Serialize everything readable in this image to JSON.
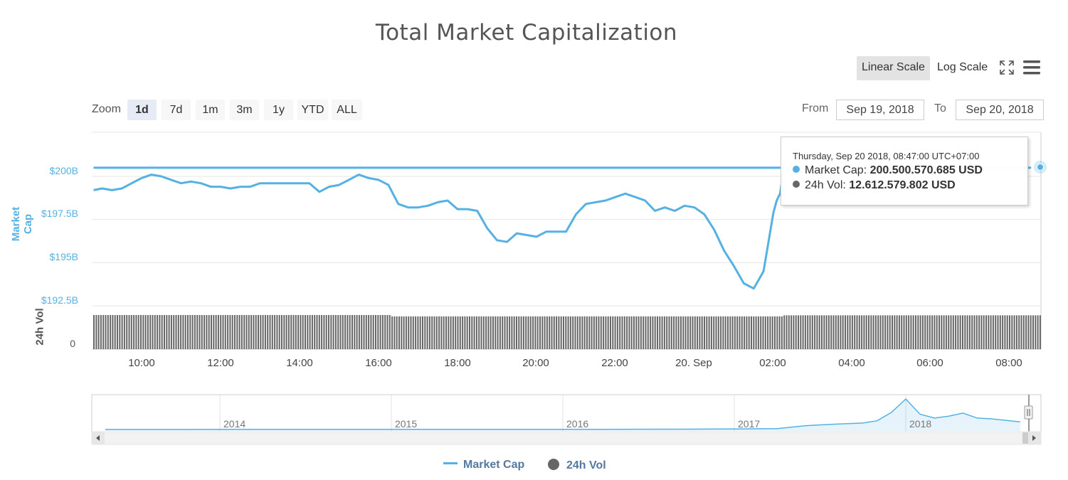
{
  "title": "Total Market Capitalization",
  "scale_toggle": {
    "linear": "Linear Scale",
    "log": "Log Scale",
    "active": "linear"
  },
  "icons": {
    "fullscreen": "fullscreen-icon",
    "menu": "menu-icon"
  },
  "zoom": {
    "label": "Zoom",
    "options": [
      "1d",
      "7d",
      "1m",
      "3m",
      "1y",
      "YTD",
      "ALL"
    ],
    "selected": "1d"
  },
  "date_range": {
    "from_label": "From",
    "from": "Sep 19, 2018",
    "to_label": "To",
    "to": "Sep 20, 2018"
  },
  "colors": {
    "market_cap": "#55b1e3",
    "volume": "#666666",
    "accent_button": "#e6ebf5"
  },
  "tooltip": {
    "date": "Thursday, Sep 20 2018, 08:47:00 UTC+07:00",
    "rows": [
      {
        "label": "Market Cap:",
        "value": "200.500.570.685 USD"
      },
      {
        "label": "24h Vol:",
        "value": "12.612.579.802 USD"
      }
    ]
  },
  "legend": {
    "market_cap": "Market Cap",
    "volume": "24h Vol"
  },
  "navigator": {
    "years": [
      "2014",
      "2015",
      "2016",
      "2017",
      "2018"
    ]
  },
  "chart_data": {
    "type": "line",
    "title": "Total Market Capitalization",
    "ylabel": "Market Cap",
    "y2label": "24h Vol",
    "yticks": [
      "$192.5B",
      "$195B",
      "$197.5B",
      "$200B"
    ],
    "y2ticks": [
      "0"
    ],
    "xticks": [
      "10:00",
      "12:00",
      "14:00",
      "16:00",
      "18:00",
      "20:00",
      "22:00",
      "20. Sep",
      "02:00",
      "04:00",
      "06:00",
      "08:00"
    ],
    "ylim": [
      192.5,
      202
    ],
    "grid": true,
    "legend_position": "bottom-center",
    "x": [
      "08:47",
      "09:00",
      "09:15",
      "09:30",
      "09:45",
      "10:00",
      "10:15",
      "10:30",
      "10:45",
      "11:00",
      "11:15",
      "11:30",
      "11:45",
      "12:00",
      "12:15",
      "12:30",
      "12:45",
      "13:00",
      "13:15",
      "13:30",
      "13:45",
      "14:00",
      "14:15",
      "14:30",
      "14:45",
      "15:00",
      "15:15",
      "15:30",
      "15:45",
      "16:00",
      "16:15",
      "16:30",
      "16:45",
      "17:00",
      "17:15",
      "17:30",
      "17:45",
      "18:00",
      "18:15",
      "18:30",
      "18:45",
      "19:00",
      "19:15",
      "19:30",
      "19:45",
      "20:00",
      "20:15",
      "20:30",
      "20:45",
      "21:00",
      "21:15",
      "21:30",
      "21:45",
      "22:00",
      "22:15",
      "22:30",
      "22:45",
      "23:00",
      "23:15",
      "23:30",
      "23:45",
      "00:00",
      "00:15",
      "00:30",
      "00:45",
      "01:00",
      "01:15",
      "01:30",
      "01:45",
      "02:00",
      "02:05",
      "02:10",
      "02:15",
      "02:20",
      "02:25",
      "02:30",
      "02:45",
      "03:00",
      "03:30",
      "04:00",
      "05:00",
      "06:00",
      "07:00",
      "08:00",
      "08:30",
      "08:47"
    ],
    "series": [
      {
        "name": "Market Cap",
        "unit": "USD billions",
        "values": [
          199.2,
          199.3,
          199.2,
          199.3,
          199.6,
          199.9,
          200.1,
          200.0,
          199.8,
          199.6,
          199.7,
          199.6,
          199.4,
          199.4,
          199.3,
          199.4,
          199.4,
          199.6,
          199.6,
          199.6,
          199.6,
          199.6,
          199.6,
          199.1,
          199.4,
          199.5,
          199.8,
          200.1,
          199.9,
          199.8,
          199.5,
          198.4,
          198.2,
          198.2,
          198.3,
          198.5,
          198.6,
          198.1,
          198.1,
          198.0,
          197.0,
          196.3,
          196.2,
          196.7,
          196.6,
          196.5,
          196.8,
          196.8,
          196.8,
          197.8,
          198.4,
          198.5,
          198.6,
          198.8,
          199.0,
          198.8,
          198.6,
          198.0,
          198.2,
          198.0,
          198.3,
          198.2,
          197.8,
          196.9,
          195.7,
          194.8,
          193.8,
          193.5,
          194.5,
          197.9,
          198.6,
          199.0,
          200.2,
          200.3,
          200.4,
          200.4,
          200.4,
          200.4,
          200.5,
          200.5,
          200.5,
          200.5,
          200.5,
          200.5,
          200.5,
          200.5
        ]
      },
      {
        "name": "24h Vol",
        "unit": "USD",
        "values_bn": {
          "08:47-18:00": 12.7,
          "18:00-02:00": 12.2,
          "02:00-08:47": 12.6
        }
      }
    ],
    "navigator_series": {
      "name": "Market Cap (all time)",
      "unit": "USD billions",
      "x": [
        "2013-04",
        "2013-10",
        "2014-04",
        "2014-10",
        "2015-04",
        "2015-10",
        "2016-04",
        "2016-10",
        "2017-01",
        "2017-04",
        "2017-06",
        "2017-08",
        "2017-10",
        "2017-11",
        "2017-12",
        "2018-01",
        "2018-02",
        "2018-03",
        "2018-04",
        "2018-05",
        "2018-06",
        "2018-07",
        "2018-08",
        "2018-09"
      ],
      "values": [
        1.5,
        2,
        5,
        6,
        4,
        3,
        6,
        10,
        14,
        25,
        100,
        140,
        170,
        230,
        450,
        800,
        400,
        300,
        350,
        430,
        300,
        280,
        240,
        200
      ]
    }
  }
}
